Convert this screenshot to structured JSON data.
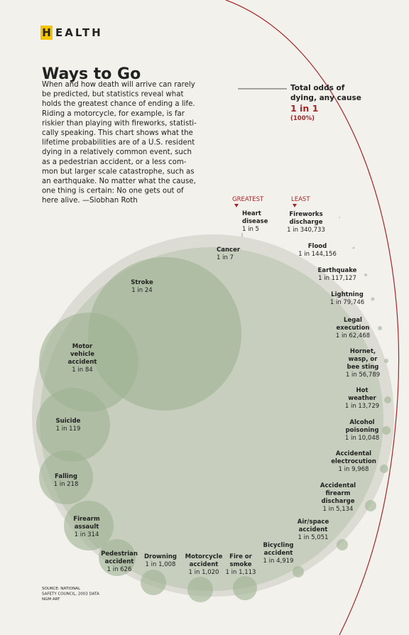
{
  "header": {
    "initial": "H",
    "rest": "EALTH"
  },
  "title": "Ways to Go",
  "intro_lines": [
    "When and how death will arrive can rarely",
    "be predicted, but statistics reveal what",
    "holds the greatest chance of ending a life.",
    "Riding a motorcycle, for example, is far",
    "riskier than playing with fireworks, statisti-",
    "cally speaking. This chart shows what the",
    "lifetime probabilities are of a U.S. resident",
    "dying in a relatively common event, such",
    "as a pedestrian accident, or a less com-",
    "mon but larger scale catastrophe, such as",
    "an earthquake. No matter what the cause,",
    "one thing is certain: No one gets out of",
    "here alive. —Siobhan Roth"
  ],
  "total": {
    "label_lines": [
      "Total odds of",
      "dying, any cause"
    ],
    "odds": "1 in 1",
    "percent": "(100%)"
  },
  "greatest": "GREATEST",
  "least": "LEAST",
  "items": [
    {
      "label_lines": [
        "Heart",
        "disease"
      ],
      "odds": "1 in 5"
    },
    {
      "label_lines": [
        "Cancer"
      ],
      "odds": "1 in 7"
    },
    {
      "label_lines": [
        "Stroke"
      ],
      "odds": "1 in 24"
    },
    {
      "label_lines": [
        "Motor",
        "vehicle",
        "accident"
      ],
      "odds": "1 in 84"
    },
    {
      "label_lines": [
        "Suicide"
      ],
      "odds": "1 in 119"
    },
    {
      "label_lines": [
        "Falling"
      ],
      "odds": "1 in 218"
    },
    {
      "label_lines": [
        "Firearm",
        "assault"
      ],
      "odds": "1 in 314"
    },
    {
      "label_lines": [
        "Pedestrian",
        "accident"
      ],
      "odds": "1 in 626"
    },
    {
      "label_lines": [
        "Drowning"
      ],
      "odds": "1 in 1,008"
    },
    {
      "label_lines": [
        "Motorcycle",
        "accident"
      ],
      "odds": "1 in 1,020"
    },
    {
      "label_lines": [
        "Fire or",
        "smoke"
      ],
      "odds": "1 in 1,113"
    },
    {
      "label_lines": [
        "Bicycling",
        "accident"
      ],
      "odds": "1 in 4,919"
    },
    {
      "label_lines": [
        "Air/space",
        "accident"
      ],
      "odds": "1 in 5,051"
    },
    {
      "label_lines": [
        "Accidental",
        "firearm",
        "discharge"
      ],
      "odds": "1 in 5,134"
    },
    {
      "label_lines": [
        "Accidental",
        "electrocution"
      ],
      "odds": "1 in 9,968"
    },
    {
      "label_lines": [
        "Alcohol",
        "poisoning"
      ],
      "odds": "1 in 10,048"
    },
    {
      "label_lines": [
        "Hot",
        "weather"
      ],
      "odds": "1 in 13,729"
    },
    {
      "label_lines": [
        "Hornet,",
        "wasp, or",
        "bee sting"
      ],
      "odds": "1 in 56,789"
    },
    {
      "label_lines": [
        "Legal",
        "execution"
      ],
      "odds": "1 in 62,468"
    },
    {
      "label_lines": [
        "Lightning"
      ],
      "odds": "1 in 79,746"
    },
    {
      "label_lines": [
        "Earthquake"
      ],
      "odds": "1 in 117,127"
    },
    {
      "label_lines": [
        "Flood"
      ],
      "odds": "1 in 144,156"
    },
    {
      "label_lines": [
        "Fireworks",
        "discharge"
      ],
      "odds": "1 in 340,733"
    }
  ],
  "source_lines": [
    "SOURCE: NATIONAL",
    "SAFETY COUNCIL, 2003 DATA",
    "NGM ART"
  ]
}
